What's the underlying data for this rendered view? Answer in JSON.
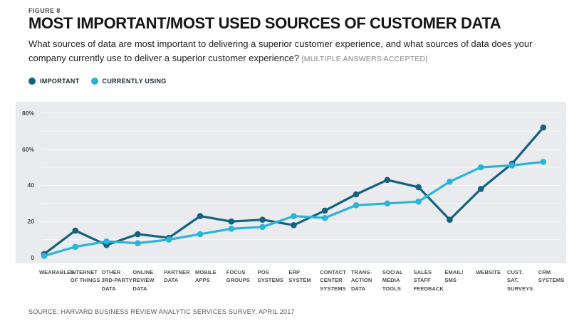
{
  "figure_label": "FIGURE 8",
  "title": "MOST IMPORTANT/MOST USED SOURCES OF CUSTOMER DATA",
  "subtitle": "What sources of data are most important to delivering a superior customer experience, and what sources of data does your company currently use to deliver a superior customer experience? ",
  "subtitle_note": "[MULTIPLE ANSWERS ACCEPTED]",
  "legend": [
    {
      "label": "IMPORTANT",
      "color": "#15617f"
    },
    {
      "label": "CURRENTLY USING",
      "color": "#2ab4d8"
    }
  ],
  "source": "SOURCE: HARVARD BUSINESS REVIEW ANALYTIC SERVICES SURVEY, APRIL 2017",
  "colors": {
    "important": "#15617f",
    "currently_using": "#2ab4d8",
    "plot_background": "#e9ebee",
    "gridline": "#f7f8f8"
  },
  "chart_data": {
    "type": "line",
    "title": "Most important/most used sources of customer data",
    "categories": [
      "WEARABLES",
      "INTERNET\nOF THINGS",
      "OTHER\n3RD-PARTY\nDATA",
      "ONLINE\nREVIEW\nDATA",
      "PARTNER\nDATA",
      "MOBILE\nAPPS",
      "FOCUS\nGROUPS",
      "POS\nSYSTEMS",
      "ERP\nSYSTEM",
      "CONTACT\nCENTER\nSYSTEMS",
      "TRANS-\nACTION\nDATA",
      "SOCIAL\nMEDIA\nTOOLS",
      "SALES\nSTAFF\nFEEDBACK",
      "EMAIL/\nSMS",
      "WEBSITE",
      "CUST.\nSAT.\nSURVEYS",
      "CRM\nSYSTEMS"
    ],
    "series": [
      {
        "name": "IMPORTANT",
        "color": "#15617f",
        "values": [
          2,
          15,
          7,
          13,
          11,
          23,
          20,
          21,
          18,
          26,
          35,
          43,
          39,
          21,
          38,
          52,
          72
        ]
      },
      {
        "name": "CURRENTLY USING",
        "color": "#2ab4d8",
        "values": [
          1,
          6,
          9,
          8,
          10,
          13,
          16,
          17,
          23,
          22,
          29,
          30,
          31,
          42,
          50,
          51,
          53
        ]
      }
    ],
    "ylabel": "",
    "xlabel": "",
    "ylim": [
      0,
      80
    ],
    "yticks": [
      {
        "value": 0,
        "label": "0"
      },
      {
        "value": 20,
        "label": "20"
      },
      {
        "value": 40,
        "label": "40"
      },
      {
        "value": 60,
        "label": "60%"
      },
      {
        "value": 80,
        "label": "80%"
      }
    ],
    "grid_interval": 10,
    "grid": true,
    "legend_position": "top-left"
  }
}
